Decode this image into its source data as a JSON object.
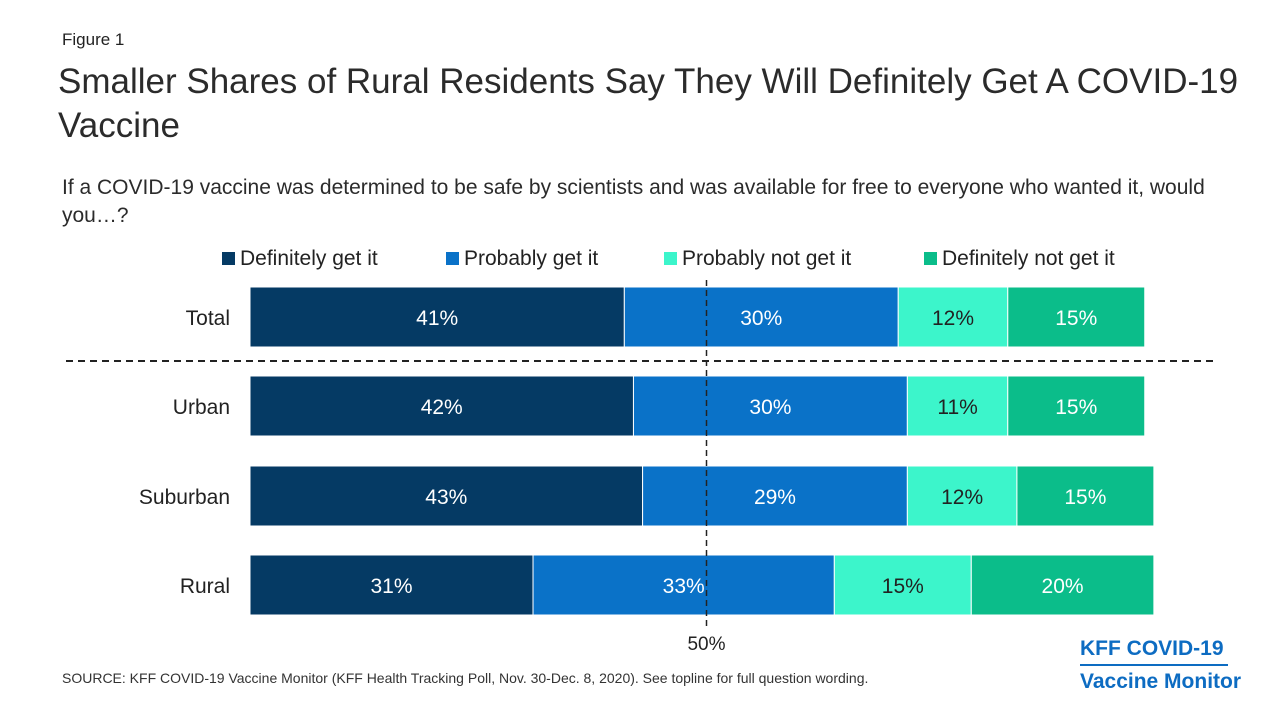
{
  "figure_label": "Figure 1",
  "title": "Smaller Shares of Rural Residents Say They Will Definitely Get A COVID-19 Vaccine",
  "subtitle": "If a COVID-19 vaccine was determined to be safe by scientists and was available for free to everyone who wanted it, would you…?",
  "source": "SOURCE: KFF COVID-19 Vaccine Monitor (KFF Health Tracking Poll, Nov. 30-Dec. 8, 2020). See topline for full question wording.",
  "brand": {
    "line1": "KFF COVID-19",
    "line2": "Vaccine Monitor"
  },
  "colors": {
    "definitely_get": "#053a64",
    "probably_get": "#0a72c8",
    "probably_not": "#3cf5cb",
    "definitely_not": "#0bbd8a",
    "text_dark": "#222222",
    "text_light": "#ffffff"
  },
  "chart_data": {
    "type": "bar",
    "orientation": "horizontal",
    "stacked": true,
    "categories": [
      "Total",
      "Urban",
      "Suburban",
      "Rural"
    ],
    "series": [
      {
        "name": "Definitely get it",
        "values": [
          41,
          42,
          43,
          31
        ],
        "labels": [
          "41%",
          "42%",
          "43%",
          "31%"
        ]
      },
      {
        "name": "Probably get it",
        "values": [
          30,
          30,
          29,
          33
        ],
        "labels": [
          "30%",
          "30%",
          "29%",
          "33%"
        ]
      },
      {
        "name": "Probably not get it",
        "values": [
          12,
          11,
          12,
          15
        ],
        "labels": [
          "12%",
          "11%",
          "12%",
          "15%"
        ]
      },
      {
        "name": "Definitely not get it",
        "values": [
          15,
          15,
          15,
          20
        ],
        "labels": [
          "15%",
          "15%",
          "15%",
          "20%"
        ]
      }
    ],
    "xlim": [
      0,
      100
    ],
    "reference_line": {
      "value": 50,
      "label": "50%"
    },
    "separator_after_category": "Total",
    "legend_position": "top",
    "grid": false
  }
}
